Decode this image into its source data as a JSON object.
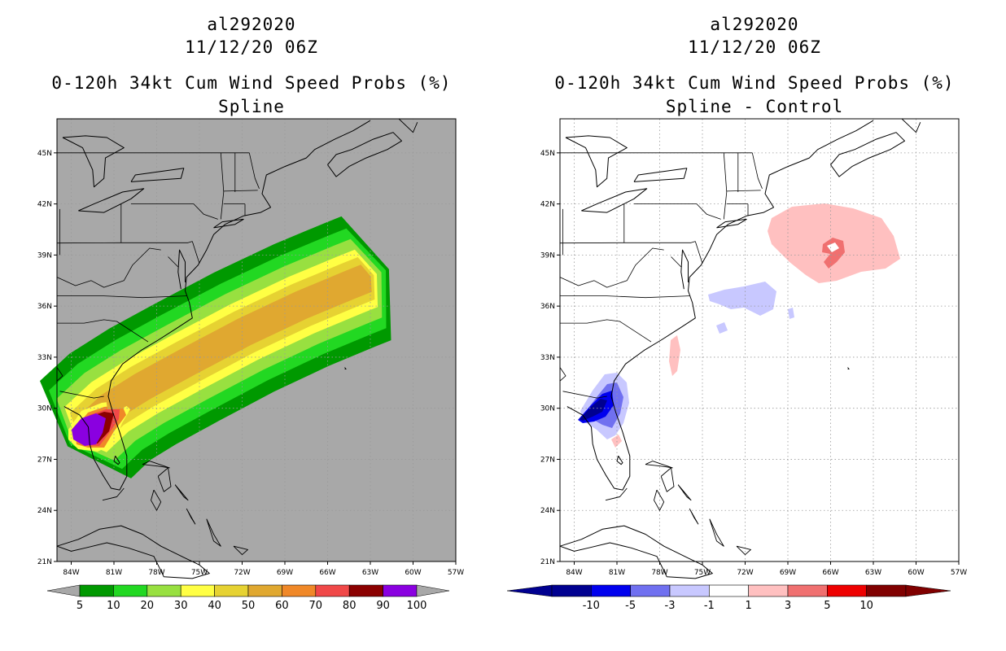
{
  "panels": [
    {
      "storm_id": "al292020",
      "datetime": "11/12/20 06Z",
      "title": "0-120h 34kt Cum Wind Speed Probs (%)",
      "subtitle": "Spline",
      "background_color": "#a8a8a8",
      "lon_labels": [
        "84W",
        "81W",
        "78W",
        "75W",
        "72W",
        "69W",
        "66W",
        "63W",
        "60W",
        "57W"
      ],
      "lat_labels": [
        "45N",
        "42N",
        "39N",
        "36N",
        "33N",
        "30N",
        "27N",
        "24N",
        "21N"
      ],
      "colorbar": {
        "colors": [
          "#009900",
          "#22d822",
          "#98e040",
          "#ffff44",
          "#e6d232",
          "#e0a830",
          "#f08828",
          "#f04848",
          "#8b0000",
          "#8a00e0"
        ],
        "labels": [
          "5",
          "10",
          "20",
          "30",
          "40",
          "50",
          "60",
          "70",
          "80",
          "90",
          "100"
        ]
      }
    },
    {
      "storm_id": "al292020",
      "datetime": "11/12/20 06Z",
      "title": "0-120h 34kt Cum Wind Speed Probs (%)",
      "subtitle": "Spline - Control",
      "background_color": "#ffffff",
      "lon_labels": [
        "84W",
        "81W",
        "78W",
        "75W",
        "72W",
        "69W",
        "66W",
        "63W",
        "60W",
        "57W"
      ],
      "lat_labels": [
        "45N",
        "42N",
        "39N",
        "36N",
        "33N",
        "30N",
        "27N",
        "24N",
        "21N"
      ],
      "colorbar": {
        "colors": [
          "#000090",
          "#0000ee",
          "#7070f0",
          "#c8c8ff",
          "#ffffff",
          "#ffc0c0",
          "#f07070",
          "#ee0000",
          "#800000"
        ],
        "labels": [
          "-10",
          "-5",
          "-3",
          "-1",
          "1",
          "3",
          "5",
          "10"
        ]
      }
    }
  ]
}
